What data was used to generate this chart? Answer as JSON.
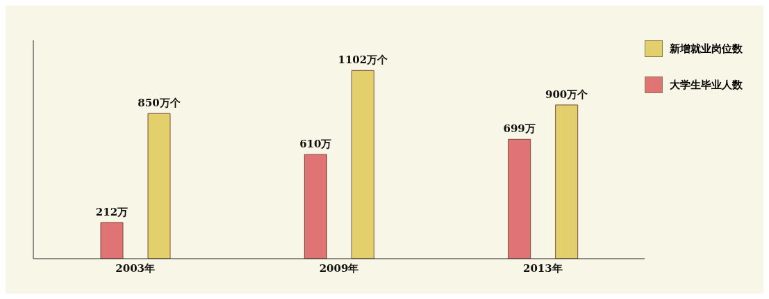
{
  "chart_data": {
    "type": "bar",
    "categories": [
      "2003年",
      "2009年",
      "2013年"
    ],
    "series": [
      {
        "name": "大学生毕业人数",
        "color": "#e07474",
        "values": [
          212,
          610,
          699
        ],
        "value_labels": [
          "212万",
          "610万",
          "699万"
        ]
      },
      {
        "name": "新增就业岗位数",
        "color": "#e3cf6c",
        "values": [
          850,
          1102,
          900
        ],
        "value_labels": [
          "850万个",
          "1102万个",
          "900万个"
        ]
      }
    ],
    "relative": false,
    "legend": "top right",
    "grid": false
  }
}
